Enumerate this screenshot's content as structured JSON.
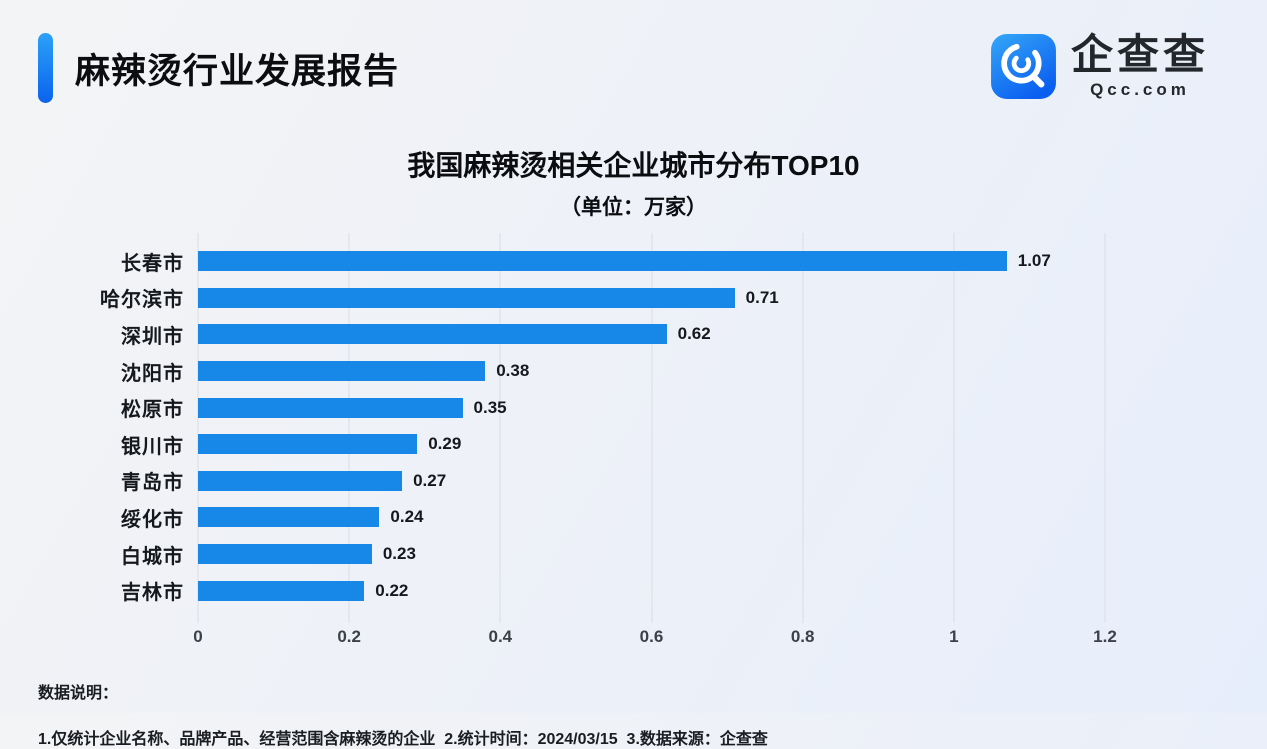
{
  "header": {
    "title": "麻辣烫行业发展报告"
  },
  "logo": {
    "brand": "企查查",
    "domain": "Qcc.com"
  },
  "chart_data": {
    "type": "bar",
    "orientation": "horizontal",
    "title": "我国麻辣烫相关企业城市分布TOP10",
    "subtitle": "（单位：万家）",
    "categories": [
      "长春市",
      "哈尔滨市",
      "深圳市",
      "沈阳市",
      "松原市",
      "银川市",
      "青岛市",
      "绥化市",
      "白城市",
      "吉林市"
    ],
    "values": [
      1.07,
      0.71,
      0.62,
      0.38,
      0.35,
      0.29,
      0.27,
      0.24,
      0.23,
      0.22
    ],
    "value_labels": [
      "1.07",
      "0.71",
      "0.62",
      "0.38",
      "0.35",
      "0.29",
      "0.27",
      "0.24",
      "0.23",
      "0.22"
    ],
    "xlim": [
      0,
      1.2
    ],
    "xtick_labels": [
      "0",
      "0.2",
      "0.4",
      "0.6",
      "0.8",
      "1",
      "1.2"
    ],
    "bar_color": "#1787e8",
    "grid": true,
    "legend_position": "none"
  },
  "footer": {
    "heading": "数据说明：",
    "note": "1.仅统计企业名称、品牌产品、经营范围含麻辣烫的企业  2.统计时间：2024/03/15  3.数据来源：企查查"
  },
  "colors": {
    "bar": "#1787e8",
    "gridline": "#d9dde4",
    "accent_top": "#2ba1f8",
    "accent_bottom": "#0b63ee",
    "text": "#111419"
  }
}
